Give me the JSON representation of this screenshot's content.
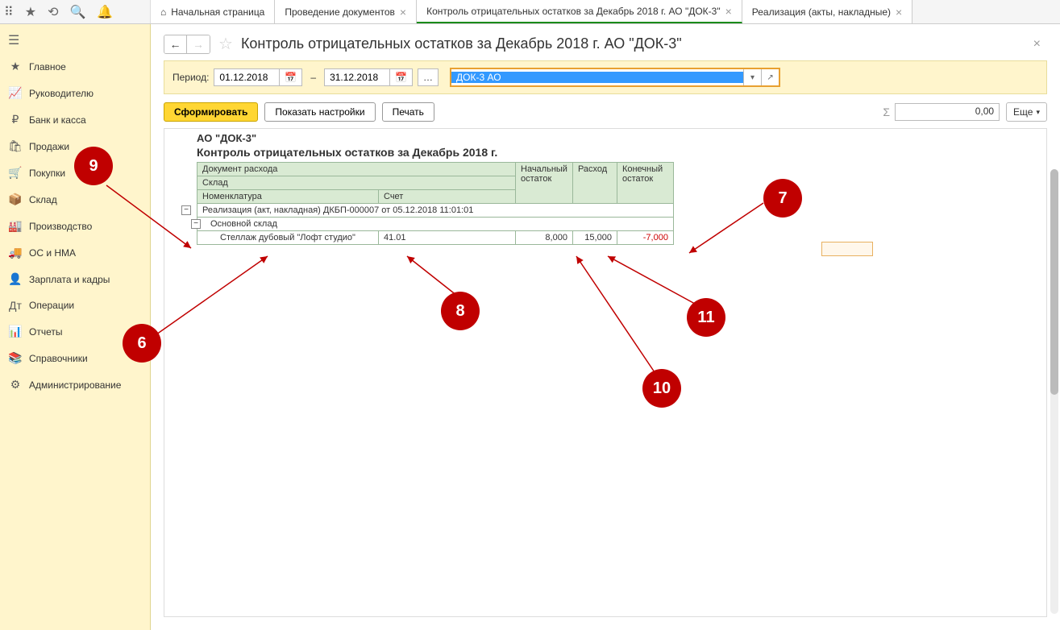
{
  "toolbar_icons": [
    "apps",
    "star",
    "history",
    "search",
    "bell"
  ],
  "tabs": [
    {
      "label": "Начальная страница",
      "home": true,
      "closeable": false
    },
    {
      "label": "Проведение документов",
      "closeable": true
    },
    {
      "label": "Контроль отрицательных остатков за Декабрь 2018 г. АО \"ДОК-3\"",
      "closeable": true,
      "active": true
    },
    {
      "label": "Реализация (акты, накладные)",
      "closeable": true
    }
  ],
  "sidebar": [
    {
      "icon": "★",
      "label": "Главное"
    },
    {
      "icon": "📈",
      "label": "Руководителю"
    },
    {
      "icon": "₽",
      "label": "Банк и касса"
    },
    {
      "icon": "🛍",
      "label": "Продажи"
    },
    {
      "icon": "🛒",
      "label": "Покупки"
    },
    {
      "icon": "📦",
      "label": "Склад"
    },
    {
      "icon": "🏭",
      "label": "Производство"
    },
    {
      "icon": "🚚",
      "label": "ОС и НМА"
    },
    {
      "icon": "👤",
      "label": "Зарплата и кадры"
    },
    {
      "icon": "Дт",
      "label": "Операции"
    },
    {
      "icon": "📊",
      "label": "Отчеты"
    },
    {
      "icon": "📚",
      "label": "Справочники"
    },
    {
      "icon": "⚙",
      "label": "Администрирование"
    }
  ],
  "page_title": "Контроль отрицательных остатков за Декабрь 2018 г. АО \"ДОК-3\"",
  "filter": {
    "period_label": "Период:",
    "date_from": "01.12.2018",
    "date_to": "31.12.2018",
    "org": "ДОК-3 АО"
  },
  "actions": {
    "form": "Сформировать",
    "settings": "Показать настройки",
    "print": "Печать",
    "sum": "0,00",
    "more": "Еще"
  },
  "report": {
    "org": "АО \"ДОК-3\"",
    "title": "Контроль отрицательных остатков за Декабрь 2018 г.",
    "headers": {
      "doc": "Документ расхода",
      "sklad": "Склад",
      "nomen": "Номенклатура",
      "acct": "Счет",
      "start": "Начальный остаток",
      "rash": "Расход",
      "end": "Конечный остаток"
    },
    "row_doc": "Реализация (акт, накладная) ДКБП-000007 от 05.12.2018 11:01:01",
    "row_sklad": "Основной склад",
    "row_item": "Стеллаж дубовый \"Лофт студио\"",
    "row_acct": "41.01",
    "val_start": "8,000",
    "val_rash": "15,000",
    "val_end": "-7,000"
  },
  "callouts": {
    "c6": "6",
    "c7": "7",
    "c8": "8",
    "c9": "9",
    "c10": "10",
    "c11": "11"
  },
  "colors": {
    "callout": "#c00000",
    "sidebar_bg": "#fff5cc",
    "header_green": "#d9ead3",
    "neg": "#cc0000"
  }
}
